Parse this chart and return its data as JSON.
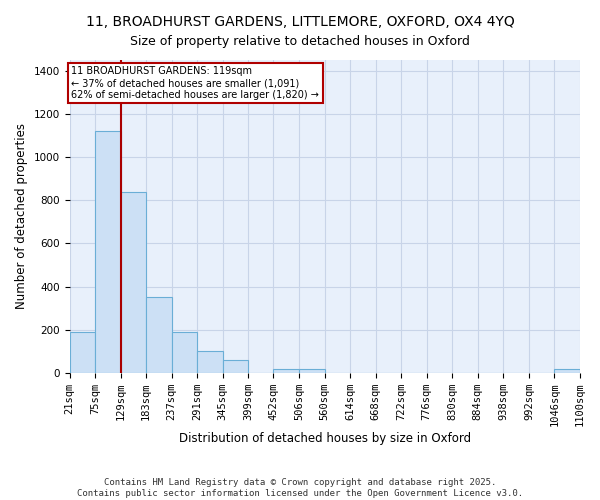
{
  "title_line1": "11, BROADHURST GARDENS, LITTLEMORE, OXFORD, OX4 4YQ",
  "title_line2": "Size of property relative to detached houses in Oxford",
  "xlabel": "Distribution of detached houses by size in Oxford",
  "ylabel": "Number of detached properties",
  "bar_color": "#cce0f5",
  "bar_edge_color": "#6aaed6",
  "background_color": "#e8f0fb",
  "grid_color": "#c8d4e8",
  "annotation_box_color": "#b00000",
  "annotation_text": "11 BROADHURST GARDENS: 119sqm\n← 37% of detached houses are smaller (1,091)\n62% of semi-detached houses are larger (1,820) →",
  "bins": [
    21,
    75,
    129,
    183,
    237,
    291,
    345,
    399,
    452,
    506,
    560,
    614,
    668,
    722,
    776,
    830,
    884,
    938,
    992,
    1046,
    1100
  ],
  "counts": [
    190,
    1120,
    840,
    350,
    190,
    100,
    60,
    0,
    20,
    20,
    0,
    0,
    0,
    0,
    0,
    0,
    0,
    0,
    0,
    20
  ],
  "red_line_bin_index": 2,
  "ylim": [
    0,
    1450
  ],
  "yticks": [
    0,
    200,
    400,
    600,
    800,
    1000,
    1200,
    1400
  ],
  "footer_text": "Contains HM Land Registry data © Crown copyright and database right 2025.\nContains public sector information licensed under the Open Government Licence v3.0.",
  "title_fontsize": 10,
  "axis_label_fontsize": 8.5,
  "tick_fontsize": 7.5,
  "footer_fontsize": 6.5
}
